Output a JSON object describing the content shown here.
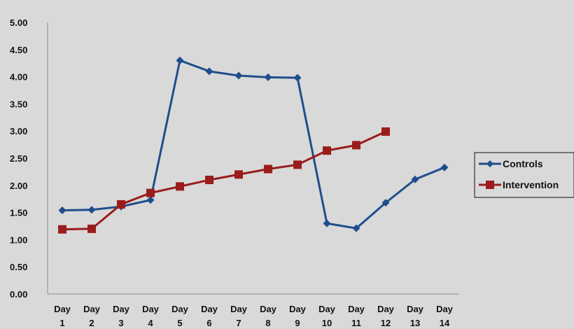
{
  "chart_data": {
    "type": "line",
    "title": "",
    "xlabel": "",
    "ylabel": "",
    "categories": [
      [
        "Day",
        "1"
      ],
      [
        "Day",
        "2"
      ],
      [
        "Day",
        "3"
      ],
      [
        "Day",
        "4"
      ],
      [
        "Day",
        "5"
      ],
      [
        "Day",
        "6"
      ],
      [
        "Day",
        "7"
      ],
      [
        "Day",
        "8"
      ],
      [
        "Day",
        "9"
      ],
      [
        "Day",
        "10"
      ],
      [
        "Day",
        "11"
      ],
      [
        "Day",
        "12"
      ],
      [
        "Day",
        "13"
      ],
      [
        "Day",
        "14"
      ]
    ],
    "ylim": [
      0,
      5
    ],
    "yticks": [
      "0.00",
      "0.50",
      "1.00",
      "1.50",
      "2.00",
      "2.50",
      "3.00",
      "3.50",
      "4.00",
      "4.50",
      "5.00"
    ],
    "grid": false,
    "legend_position": "right",
    "series": [
      {
        "name": "Controls",
        "color": "#1f4e8c",
        "marker": "diamond",
        "values": [
          1.54,
          1.55,
          1.61,
          1.73,
          4.3,
          4.1,
          4.02,
          3.99,
          3.98,
          1.3,
          1.21,
          1.68,
          2.11,
          2.33
        ]
      },
      {
        "name": "Intervention",
        "color": "#9b1c1c",
        "marker": "square",
        "values": [
          1.19,
          1.2,
          1.65,
          1.86,
          1.98,
          2.1,
          2.2,
          2.3,
          2.38,
          2.64,
          2.74,
          2.99,
          null,
          null
        ]
      }
    ]
  }
}
